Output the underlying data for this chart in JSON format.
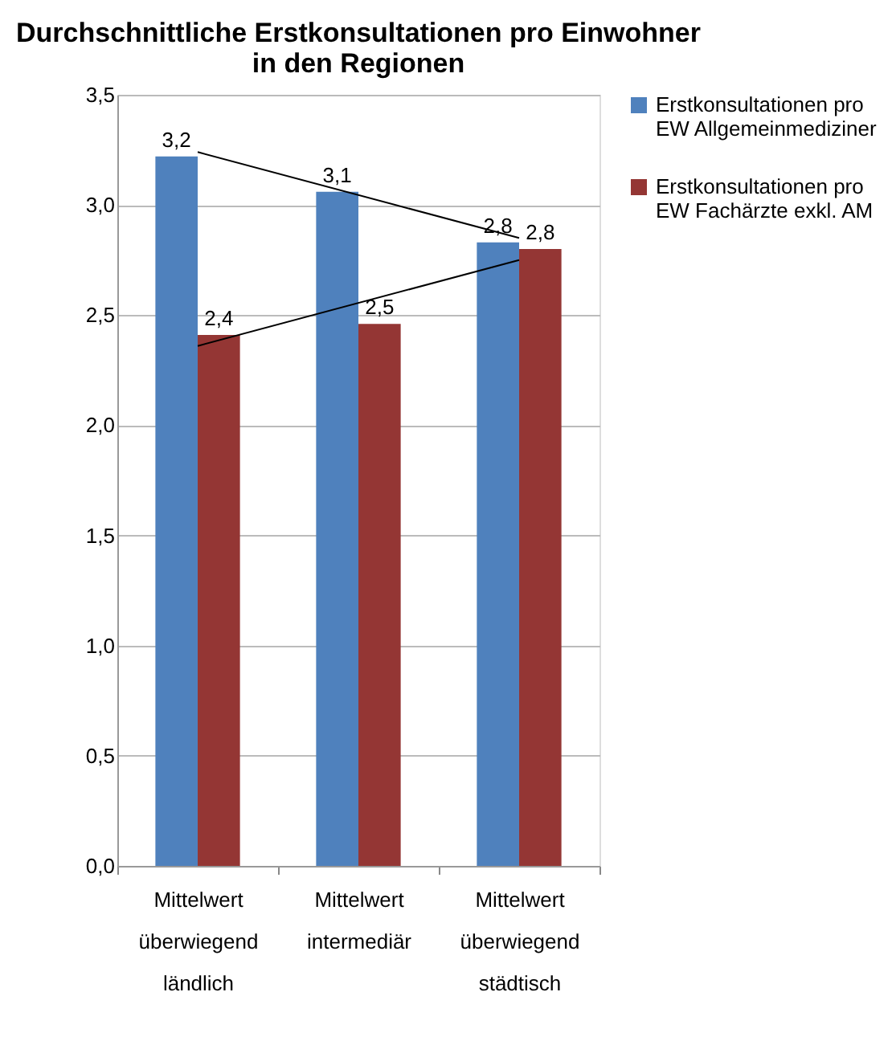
{
  "chart_data": {
    "type": "bar",
    "title": "Durchschnittliche Erstkonsultationen pro Einwohner in den Regionen",
    "categories": [
      "Mittelwert überwiegend ländlich",
      "Mittelwert intermediär",
      "Mittelwert überwiegend städtisch"
    ],
    "series": [
      {
        "name": "Erstkonsultationen pro EW Allgemeinmediziner",
        "color": "#4f81bd",
        "values": [
          3.22,
          3.06,
          2.83
        ],
        "value_labels": [
          "3,2",
          "3,1",
          "2,8"
        ]
      },
      {
        "name": "Erstkonsultationen pro EW Fachärzte exkl. AM",
        "color": "#943634",
        "values": [
          2.41,
          2.46,
          2.8
        ],
        "value_labels": [
          "2,4",
          "2,5",
          "2,8"
        ]
      },
      {
        "type": "line",
        "color": "#000000",
        "x": [
          "Mittelwert überwiegend ländlich",
          "Mittelwert überwiegend städtisch"
        ],
        "values": [
          3.24,
          2.85
        ]
      },
      {
        "type": "line",
        "color": "#000000",
        "x": [
          "Mittelwert überwiegend ländlich",
          "Mittelwert überwiegend städtisch"
        ],
        "values": [
          2.36,
          2.75
        ]
      }
    ],
    "ylim": [
      0,
      3.5
    ],
    "yticks": [
      {
        "value": 0,
        "label": "0,0"
      },
      {
        "value": 0.5,
        "label": "0,5"
      },
      {
        "value": 1,
        "label": "1,0"
      },
      {
        "value": 1.5,
        "label": "1,5"
      },
      {
        "value": 2,
        "label": "2,0"
      },
      {
        "value": 2.5,
        "label": "2,5"
      },
      {
        "value": 3,
        "label": "3,0"
      },
      {
        "value": 3.5,
        "label": "3,5"
      }
    ],
    "grid": "y",
    "legend": "right"
  }
}
